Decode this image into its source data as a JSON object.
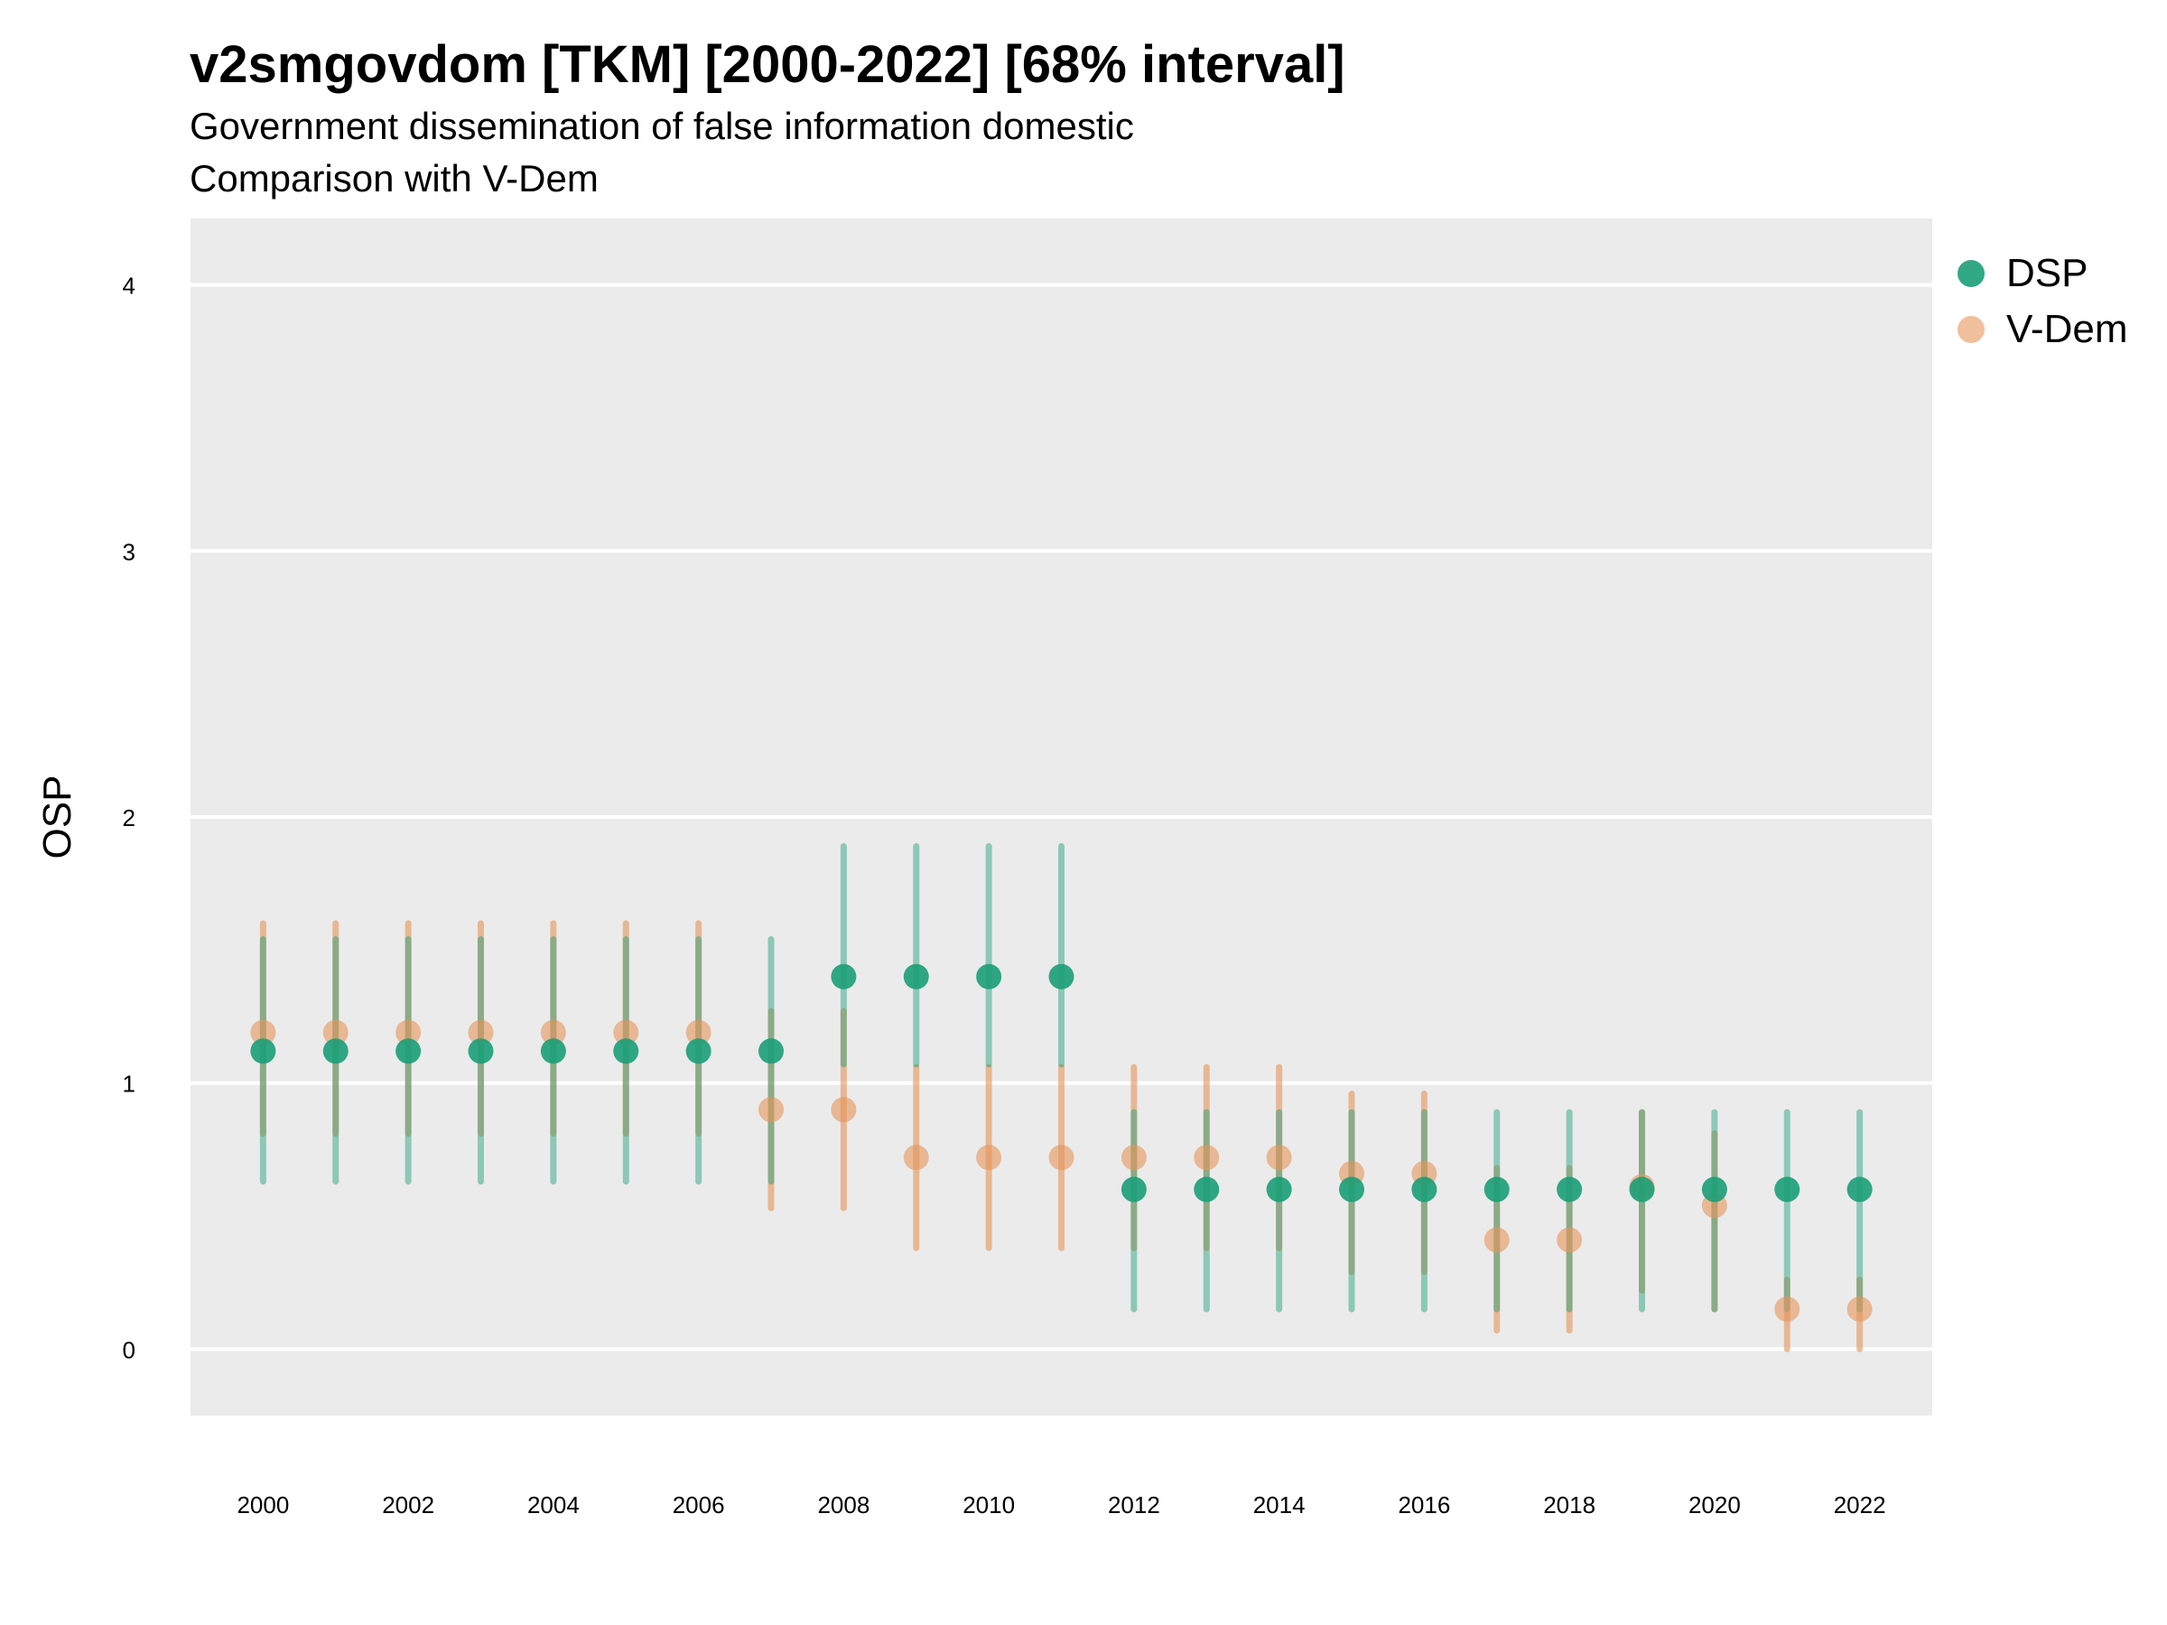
{
  "title": "v2smgovdom [TKM] [2000-2022] [68% interval]",
  "subtitle": "Government dissemination of false information domestic",
  "caption": "Comparison with V-Dem",
  "colors": {
    "panel": "#ebebeb",
    "grid": "#ffffff",
    "DSP": "#1b9e77",
    "V-Dem": "#e6955a"
  },
  "chart_data": {
    "type": "scatter",
    "title": "v2smgovdom [TKM] [2000-2022] [68% interval]",
    "subtitle": "Government dissemination of false information domestic",
    "xlabel": "",
    "ylabel": "OSP",
    "ylim": [
      -0.25,
      4.25
    ],
    "xlim": [
      1999,
      2023
    ],
    "yticks": [
      0,
      1,
      2,
      3,
      4
    ],
    "xticks": [
      2000,
      2002,
      2004,
      2006,
      2008,
      2010,
      2012,
      2014,
      2016,
      2018,
      2020,
      2022
    ],
    "grid": true,
    "legend_position": "right",
    "series": [
      {
        "name": "DSP",
        "color": "#1b9e77",
        "x": [
          2000,
          2001,
          2002,
          2003,
          2004,
          2005,
          2006,
          2007,
          2008,
          2009,
          2010,
          2011,
          2012,
          2013,
          2014,
          2015,
          2016,
          2017,
          2018,
          2019,
          2020,
          2021,
          2022
        ],
        "y": [
          1.12,
          1.12,
          1.12,
          1.12,
          1.12,
          1.12,
          1.12,
          1.12,
          1.4,
          1.4,
          1.4,
          1.4,
          0.6,
          0.6,
          0.6,
          0.6,
          0.6,
          0.6,
          0.6,
          0.6,
          0.6,
          0.6,
          0.6
        ],
        "lower": [
          0.63,
          0.63,
          0.63,
          0.63,
          0.63,
          0.63,
          0.63,
          0.63,
          1.07,
          1.07,
          1.07,
          1.07,
          0.15,
          0.15,
          0.15,
          0.15,
          0.15,
          0.15,
          0.15,
          0.15,
          0.15,
          0.15,
          0.15
        ],
        "upper": [
          1.54,
          1.54,
          1.54,
          1.54,
          1.54,
          1.54,
          1.54,
          1.54,
          1.89,
          1.89,
          1.89,
          1.89,
          0.89,
          0.89,
          0.89,
          0.89,
          0.89,
          0.89,
          0.89,
          0.89,
          0.89,
          0.89,
          0.89
        ]
      },
      {
        "name": "V-Dem",
        "color": "#e6955a",
        "x": [
          2000,
          2001,
          2002,
          2003,
          2004,
          2005,
          2006,
          2007,
          2008,
          2009,
          2010,
          2011,
          2012,
          2013,
          2014,
          2015,
          2016,
          2017,
          2018,
          2019,
          2020,
          2021,
          2022
        ],
        "y": [
          1.19,
          1.19,
          1.19,
          1.19,
          1.19,
          1.19,
          1.19,
          0.9,
          0.9,
          0.72,
          0.72,
          0.72,
          0.72,
          0.72,
          0.72,
          0.66,
          0.66,
          0.41,
          0.41,
          0.61,
          0.54,
          0.15,
          0.15
        ],
        "lower": [
          0.81,
          0.81,
          0.81,
          0.81,
          0.81,
          0.81,
          0.81,
          0.53,
          0.53,
          0.38,
          0.38,
          0.38,
          0.38,
          0.38,
          0.38,
          0.29,
          0.29,
          0.07,
          0.07,
          0.22,
          0.15,
          0.0,
          0.0
        ],
        "upper": [
          1.6,
          1.6,
          1.6,
          1.6,
          1.6,
          1.6,
          1.6,
          1.27,
          1.27,
          1.06,
          1.06,
          1.06,
          1.06,
          1.06,
          1.06,
          0.96,
          0.96,
          0.68,
          0.68,
          0.89,
          0.81,
          0.26,
          0.26
        ]
      }
    ]
  }
}
